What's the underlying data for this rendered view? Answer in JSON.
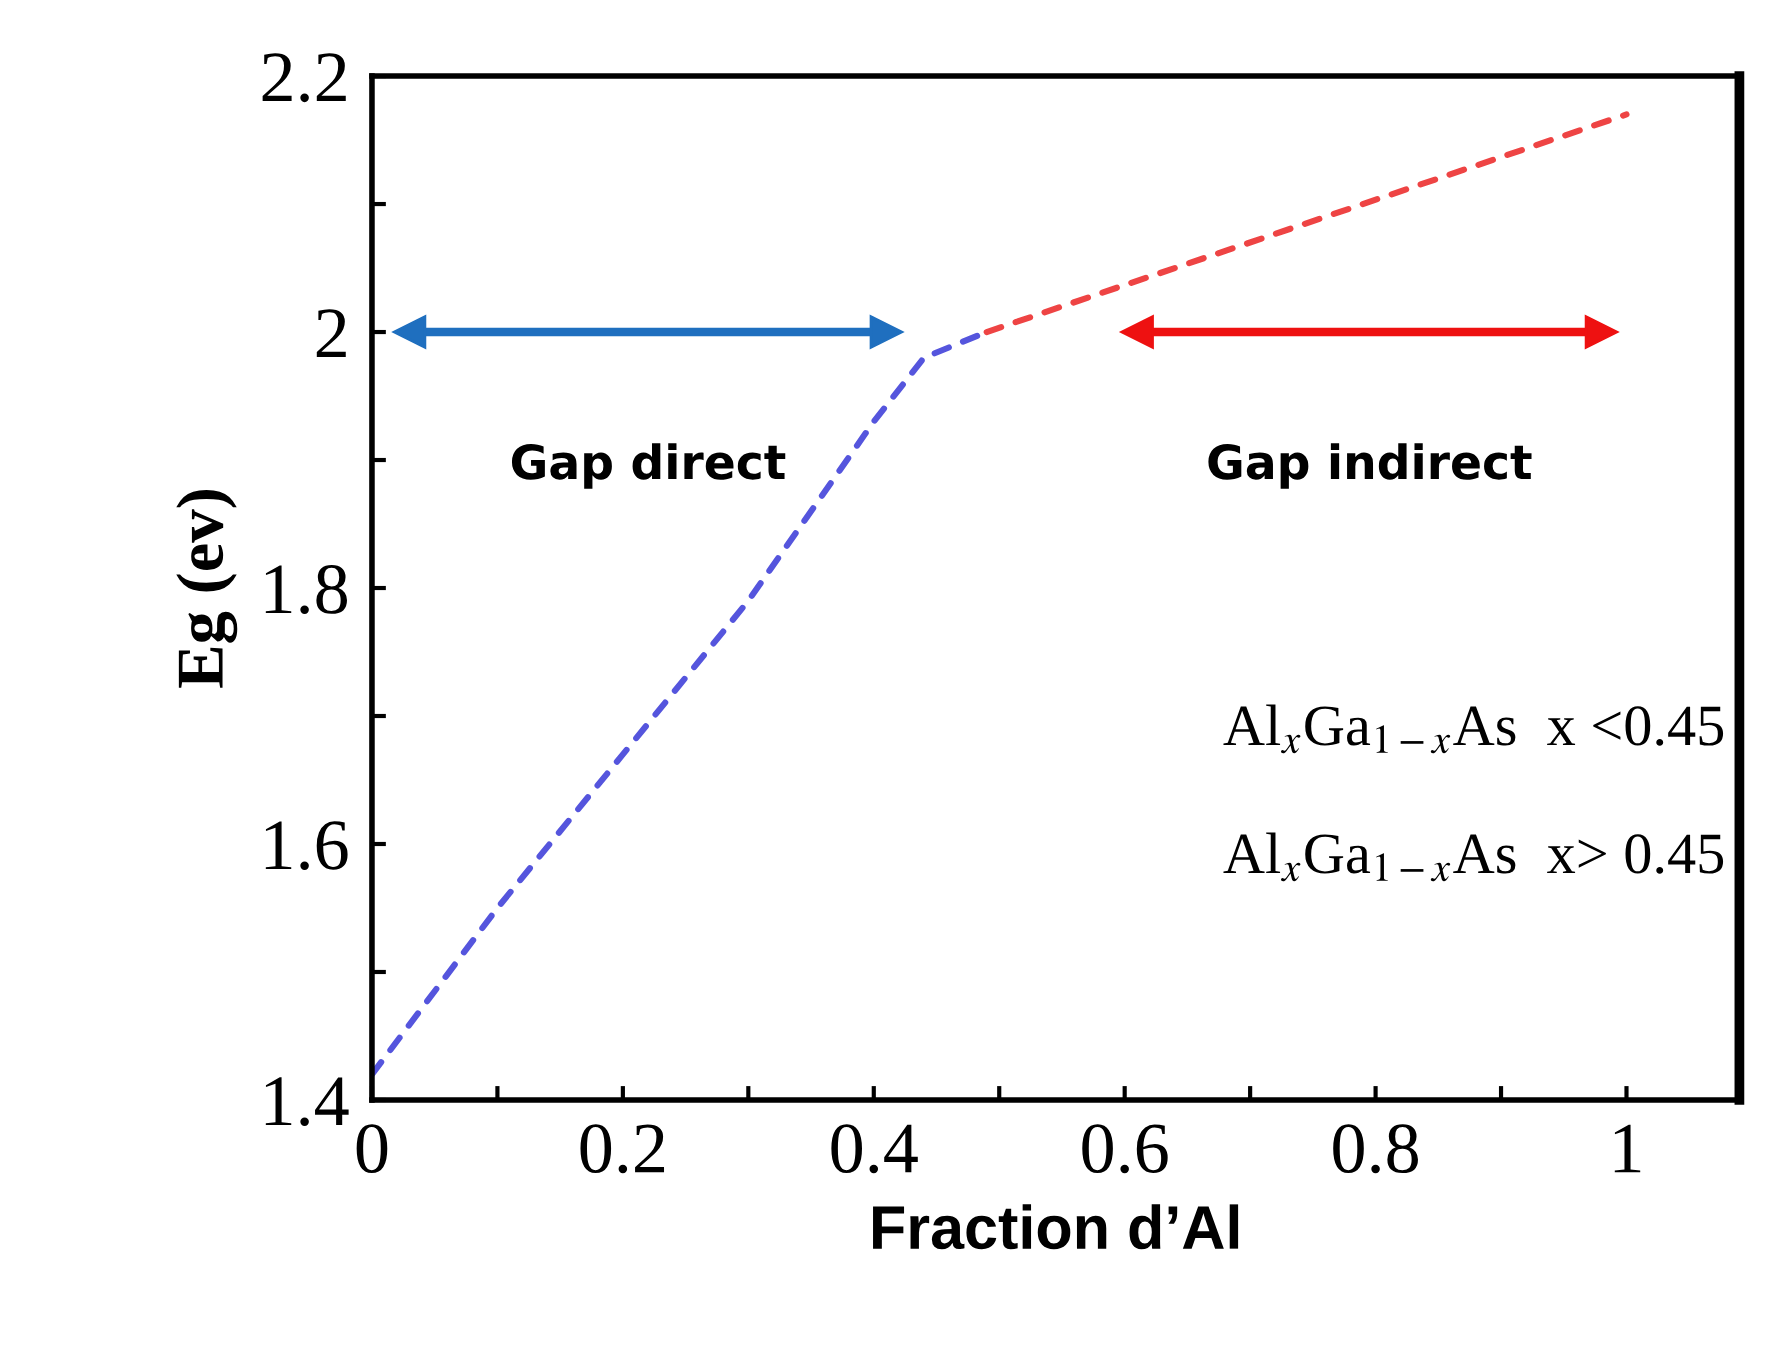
{
  "chart_data": {
    "type": "line",
    "xlabel": "Fraction d’Al",
    "ylabel": "Eg (ev)",
    "series": [
      {
        "color": "#5555dd",
        "line_style": "dashed",
        "x": [
          0,
          0.1,
          0.2,
          0.3,
          0.4,
          0.44,
          0.49
        ],
        "values": [
          1.42,
          1.55,
          1.67,
          1.79,
          1.93,
          1.98,
          2.0
        ]
      },
      {
        "color": "#ee4444",
        "line_style": "dashed",
        "x": [
          0.49,
          1.0
        ],
        "values": [
          2.0,
          2.17
        ]
      },
      {
        "color": "#1f6fbf",
        "line_style": "solid",
        "marker": "triangle",
        "x": [
          0.03,
          0.41
        ],
        "values": [
          2.0,
          2.0
        ]
      },
      {
        "color": "#ee1111",
        "line_style": "solid",
        "marker": "triangle",
        "x": [
          0.61,
          0.98
        ],
        "values": [
          2.0,
          2.0
        ]
      }
    ],
    "annotations": [
      {
        "text": "Gap direct",
        "x": 0.22,
        "y": 2.0
      },
      {
        "text": "Gap indirect",
        "x": 0.795,
        "y": 2.0
      },
      "Al$_{x}$Ga$_{1−x}$As  x <0.45",
      "Al$_{x}$Ga$_{1−x}$As  x> 0.45"
    ],
    "xlim": [
      0,
      1.09
    ],
    "ylim": [
      1.4,
      2.2
    ],
    "xticks": [
      0,
      {
        "value": 0.1,
        "label": null
      },
      0.2,
      {
        "value": 0.3,
        "label": null
      },
      0.4,
      {
        "value": 0.5,
        "label": null
      },
      0.6,
      {
        "value": 0.7,
        "label": null
      },
      0.8,
      {
        "value": 0.9,
        "label": null
      },
      1
    ],
    "yticks": [
      1.4,
      {
        "value": 1.5,
        "label": null
      },
      1.6,
      {
        "value": 1.7,
        "label": null
      },
      1.8,
      {
        "value": 1.9,
        "label": null
      },
      2,
      {
        "value": 2.1,
        "label": null
      },
      2.2
    ],
    "grid": false
  }
}
